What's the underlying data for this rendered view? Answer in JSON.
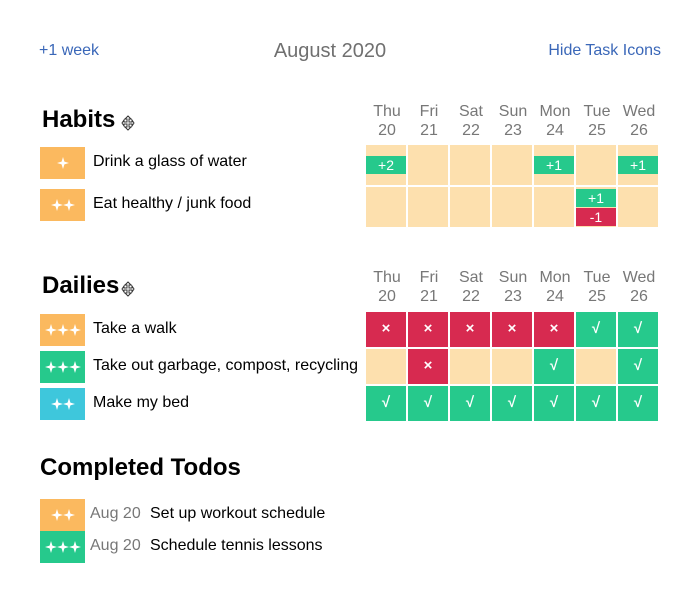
{
  "header": {
    "prev_label": "+1 week",
    "month": "August 2020",
    "hide_label": "Hide Task Icons"
  },
  "colors": {
    "yellow": "#fbb95f",
    "green": "#26c98c",
    "teal": "#3ec7dc",
    "red": "#d72a50",
    "empty": "#fde0ae",
    "link": "#3a67b8"
  },
  "days": [
    {
      "name": "Thu",
      "num": "20"
    },
    {
      "name": "Fri",
      "num": "21"
    },
    {
      "name": "Sat",
      "num": "22"
    },
    {
      "name": "Sun",
      "num": "23"
    },
    {
      "name": "Mon",
      "num": "24"
    },
    {
      "name": "Tue",
      "num": "25"
    },
    {
      "name": "Wed",
      "num": "26"
    }
  ],
  "habits": {
    "title": "Habits",
    "items": [
      {
        "label": "Drink a glass of water",
        "icon_color": "yellow",
        "stars": 1,
        "cells": [
          {
            "plus": "+2"
          },
          {},
          {},
          {},
          {
            "plus": "+1"
          },
          {},
          {
            "plus": "+1"
          }
        ]
      },
      {
        "label": "Eat healthy / junk food",
        "icon_color": "yellow",
        "stars": 2,
        "cells": [
          {},
          {},
          {},
          {},
          {},
          {
            "plus": "+1",
            "minus": "-1"
          },
          {}
        ]
      }
    ]
  },
  "dailies": {
    "title": "Dailies",
    "items": [
      {
        "label": "Take a walk",
        "icon_color": "yellow",
        "stars": 3,
        "cells": [
          "x",
          "x",
          "x",
          "x",
          "x",
          "check",
          "check"
        ]
      },
      {
        "label": "Take out garbage, compost, recycling",
        "icon_color": "green",
        "stars": 3,
        "cells": [
          "",
          "x",
          "",
          "",
          "check",
          "",
          "check"
        ]
      },
      {
        "label": "Make my bed",
        "icon_color": "teal",
        "stars": 2,
        "cells": [
          "check",
          "check",
          "check",
          "check",
          "check",
          "check",
          "check"
        ]
      }
    ]
  },
  "todos": {
    "title": "Completed Todos",
    "items": [
      {
        "date": "Aug 20",
        "label": "Set up workout schedule",
        "icon_color": "yellow",
        "stars": 2
      },
      {
        "date": "Aug 20",
        "label": "Schedule tennis lessons",
        "icon_color": "green",
        "stars": 3
      }
    ]
  },
  "glyphs": {
    "x": "×",
    "check": "√"
  }
}
